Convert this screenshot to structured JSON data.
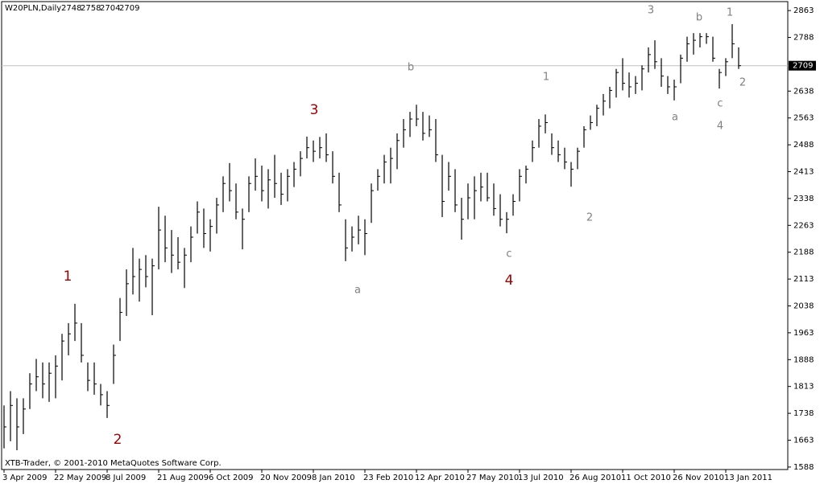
{
  "chart_data": {
    "type": "ohlc",
    "symbol": "W20PLN,Daily",
    "last_bar": [
      2748,
      2758,
      2704,
      2709
    ],
    "footer": "XTB-Trader, © 2001-2010 MetaQuotes Software Corp.",
    "color": "#000000",
    "price_line_color": "#c0c0c0",
    "categories": [
      "3 Apr 2009",
      null,
      null,
      null,
      null,
      null,
      null,
      null,
      "22 May 2009",
      null,
      null,
      null,
      null,
      null,
      null,
      null,
      "8 Jul 2009",
      null,
      null,
      null,
      null,
      null,
      null,
      null,
      "21 Aug 2009",
      null,
      null,
      null,
      null,
      null,
      null,
      null,
      "6 Oct 2009",
      null,
      null,
      null,
      null,
      null,
      null,
      null,
      "20 Nov 2009",
      null,
      null,
      null,
      null,
      null,
      null,
      null,
      "8 Jan 2010",
      null,
      null,
      null,
      null,
      null,
      null,
      null,
      "23 Feb 2010",
      null,
      null,
      null,
      null,
      null,
      null,
      null,
      "12 Apr 2010",
      null,
      null,
      null,
      null,
      null,
      null,
      null,
      "27 May 2010",
      null,
      null,
      null,
      null,
      null,
      null,
      null,
      "13 Jul 2010",
      null,
      null,
      null,
      null,
      null,
      null,
      null,
      "26 Aug 2010",
      null,
      null,
      null,
      null,
      null,
      null,
      null,
      "11 Oct 2010",
      null,
      null,
      null,
      null,
      null,
      null,
      null,
      "26 Nov 2010",
      null,
      null,
      null,
      null,
      null,
      null,
      null,
      "13 Jan 2011",
      null,
      null
    ],
    "high": [
      1760,
      1800,
      1780,
      1780,
      1850,
      1890,
      1880,
      1880,
      1900,
      1960,
      1990,
      2044,
      1990,
      1880,
      1880,
      1820,
      1800,
      1930,
      2060,
      2140,
      2200,
      2170,
      2180,
      2170,
      2315,
      2290,
      2250,
      2230,
      2200,
      2260,
      2330,
      2310,
      2280,
      2340,
      2400,
      2437,
      2380,
      2310,
      2400,
      2450,
      2430,
      2420,
      2460,
      2410,
      2420,
      2440,
      2470,
      2511,
      2500,
      2510,
      2520,
      2470,
      2410,
      2280,
      2260,
      2290,
      2280,
      2380,
      2420,
      2460,
      2480,
      2520,
      2560,
      2580,
      2600,
      2580,
      2570,
      2560,
      2460,
      2440,
      2420,
      2340,
      2380,
      2400,
      2410,
      2410,
      2380,
      2350,
      2300,
      2350,
      2420,
      2430,
      2500,
      2560,
      2573,
      2520,
      2500,
      2480,
      2440,
      2480,
      2540,
      2570,
      2600,
      2630,
      2650,
      2700,
      2730,
      2690,
      2680,
      2710,
      2760,
      2780,
      2730,
      2680,
      2670,
      2740,
      2790,
      2800,
      2800,
      2800,
      2790,
      2700,
      2730,
      2825,
      2760
    ],
    "low": [
      1640,
      1660,
      1635,
      1680,
      1750,
      1800,
      1780,
      1770,
      1780,
      1830,
      1900,
      1940,
      1880,
      1800,
      1790,
      1760,
      1725,
      1820,
      1940,
      2010,
      2070,
      2050,
      2090,
      2012,
      2140,
      2160,
      2130,
      2140,
      2088,
      2160,
      2240,
      2200,
      2190,
      2240,
      2300,
      2330,
      2280,
      2196,
      2300,
      2360,
      2330,
      2310,
      2340,
      2320,
      2330,
      2370,
      2400,
      2450,
      2440,
      2450,
      2440,
      2380,
      2300,
      2163,
      2190,
      2210,
      2180,
      2270,
      2360,
      2380,
      2380,
      2420,
      2480,
      2510,
      2540,
      2500,
      2510,
      2440,
      2286,
      2360,
      2300,
      2223,
      2280,
      2280,
      2330,
      2330,
      2290,
      2260,
      2241,
      2290,
      2330,
      2380,
      2440,
      2480,
      2520,
      2460,
      2440,
      2420,
      2371,
      2420,
      2480,
      2530,
      2540,
      2570,
      2590,
      2620,
      2640,
      2620,
      2630,
      2640,
      2690,
      2700,
      2650,
      2630,
      2612,
      2660,
      2720,
      2740,
      2760,
      2770,
      2720,
      2645,
      2680,
      2730,
      2700
    ],
    "close": [
      1700,
      1760,
      1700,
      1750,
      1820,
      1840,
      1820,
      1850,
      1870,
      1940,
      1960,
      1990,
      1900,
      1830,
      1820,
      1790,
      1760,
      1900,
      2020,
      2100,
      2120,
      2140,
      2120,
      2150,
      2250,
      2200,
      2180,
      2160,
      2180,
      2230,
      2300,
      2240,
      2260,
      2320,
      2380,
      2360,
      2300,
      2280,
      2380,
      2400,
      2360,
      2390,
      2380,
      2350,
      2400,
      2420,
      2450,
      2480,
      2470,
      2480,
      2460,
      2400,
      2320,
      2200,
      2230,
      2250,
      2240,
      2360,
      2400,
      2440,
      2450,
      2500,
      2530,
      2560,
      2560,
      2520,
      2530,
      2460,
      2330,
      2400,
      2320,
      2280,
      2340,
      2360,
      2370,
      2340,
      2310,
      2280,
      2280,
      2330,
      2400,
      2420,
      2480,
      2540,
      2550,
      2480,
      2460,
      2440,
      2420,
      2470,
      2530,
      2550,
      2590,
      2610,
      2640,
      2690,
      2660,
      2650,
      2660,
      2700,
      2740,
      2720,
      2680,
      2650,
      2650,
      2730,
      2770,
      2780,
      2790,
      2790,
      2730,
      2690,
      2720,
      2770,
      2709
    ],
    "ylim": [
      1581,
      2888
    ],
    "yticks": [
      1588,
      1663,
      1738,
      1813,
      1888,
      1963,
      2038,
      2113,
      2188,
      2263,
      2338,
      2413,
      2488,
      2563,
      2638,
      2788,
      2863
    ],
    "annotations": [
      {
        "text": "3",
        "color": "#808080"
      },
      {
        "text": "b",
        "color": "#808080"
      },
      {
        "text": "1",
        "color": "#808080"
      },
      {
        "text": "b",
        "color": "#808080"
      },
      {
        "text": "1",
        "color": "#808080"
      },
      {
        "text": "2",
        "color": "#808080"
      },
      {
        "text": "c",
        "color": "#808080"
      },
      {
        "text": "a",
        "color": "#808080"
      },
      {
        "text": "4",
        "color": "#808080"
      },
      {
        "text": "3",
        "color": "#a00000"
      },
      {
        "text": "2",
        "color": "#808080"
      },
      {
        "text": "c",
        "color": "#808080"
      },
      {
        "text": "4",
        "color": "#a00000"
      },
      {
        "text": "a",
        "color": "#808080"
      },
      {
        "text": "1",
        "color": "#a00000"
      },
      {
        "text": "2",
        "color": "#a00000"
      }
    ]
  }
}
